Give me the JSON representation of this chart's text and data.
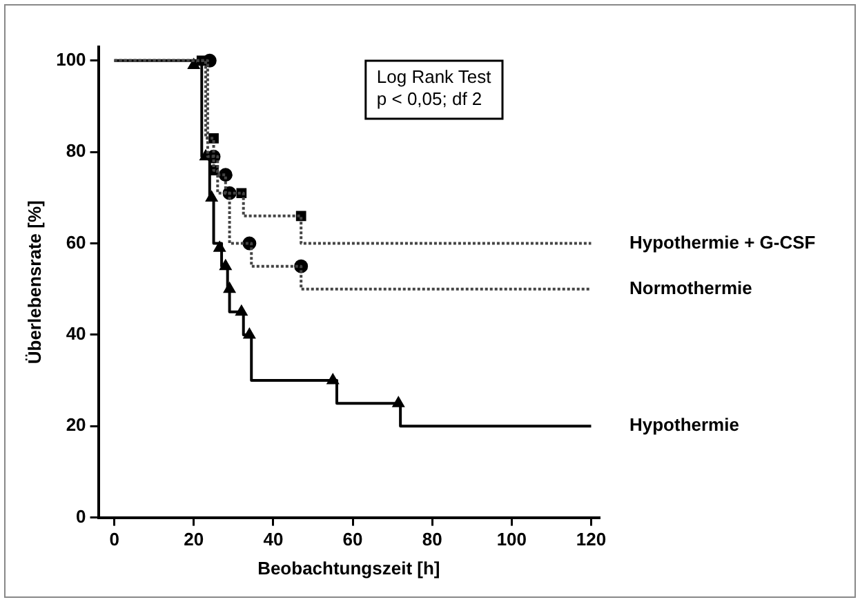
{
  "chart_data": {
    "type": "step",
    "xlabel": "Beobachtungszeit [h]",
    "ylabel": "Überlebensrate [%]",
    "xlim": [
      -4,
      122
    ],
    "xticks": [
      0,
      20,
      40,
      60,
      80,
      100,
      120
    ],
    "ylim": [
      0,
      103
    ],
    "yticks": [
      0,
      20,
      40,
      60,
      80,
      100
    ],
    "grid": false,
    "legend": false,
    "annotations": [
      "Log Rank Test\np < 0,05; df 2"
    ],
    "series": [
      {
        "name": "Hypothermie + G-CSF",
        "color": "#444444",
        "line_style": "dotted",
        "marker": "none",
        "x": [
          0,
          23,
          25,
          26,
          32.5,
          47,
          120
        ],
        "values": [
          100,
          83,
          76,
          71,
          66,
          60,
          60
        ]
      },
      {
        "name": "Normothermie",
        "color": "#444444",
        "line_style": "dotted",
        "marker": "none",
        "x": [
          0,
          23.5,
          26,
          28,
          29,
          34.5,
          47,
          120
        ],
        "values": [
          100,
          79,
          75,
          71,
          60,
          55,
          50,
          50
        ]
      },
      {
        "name": "Hypothermie",
        "color": "#000000",
        "line_style": "solid",
        "marker": "none",
        "x": [
          0,
          22,
          24,
          25,
          27,
          28.5,
          29,
          32.5,
          34.5,
          56,
          72,
          120
        ],
        "values": [
          100,
          79,
          70,
          60,
          55,
          50,
          45,
          40,
          30,
          25,
          20,
          20
        ]
      },
      {
        "type": "scatter",
        "color": "#000000",
        "marker": "square",
        "x": [
          22,
          25,
          25,
          32,
          47
        ],
        "values": [
          100,
          83,
          76,
          71,
          66
        ]
      },
      {
        "type": "scatter",
        "color": "#000000",
        "marker": "circle",
        "x": [
          24,
          25,
          28,
          29,
          34,
          47
        ],
        "values": [
          100,
          79,
          75,
          71,
          60,
          55
        ]
      },
      {
        "type": "scatter",
        "color": "#000000",
        "marker": "triangle",
        "x": [
          20,
          23,
          24.5,
          26.5,
          28,
          29,
          32,
          34,
          55,
          71.5
        ],
        "values": [
          99,
          79,
          70,
          59,
          55,
          50,
          45,
          40,
          30,
          25
        ]
      }
    ]
  }
}
